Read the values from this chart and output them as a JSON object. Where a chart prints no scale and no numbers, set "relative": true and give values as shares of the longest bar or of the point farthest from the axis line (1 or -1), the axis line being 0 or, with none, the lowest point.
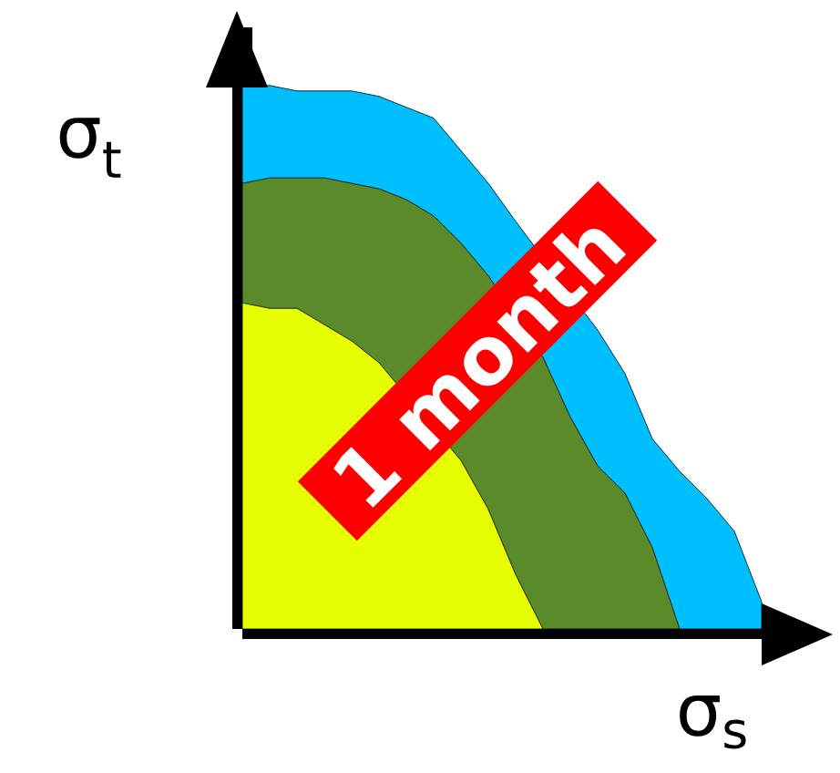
{
  "chart_data": {
    "type": "area",
    "relative": true,
    "xlabel": "σ$_{s}$",
    "ylabel": "σ$_{t}$",
    "categories": [
      null,
      null,
      null,
      null,
      null,
      null,
      null,
      null,
      null,
      null,
      null,
      null,
      null,
      null,
      null,
      null,
      null,
      null,
      null,
      null
    ],
    "series": [
      {
        "color": "#00bfff",
        "values": [
          1.0,
          1.0,
          0.99,
          0.99,
          0.99,
          0.98,
          0.96,
          0.94,
          0.88,
          0.82,
          0.75,
          null,
          null,
          0.55,
          0.47,
          0.35,
          0.29,
          0.24,
          0.18,
          0.05
        ]
      },
      {
        "color": "#5b8a2b",
        "values": [
          0.82,
          0.83,
          0.83,
          0.83,
          0.82,
          0.81,
          0.79,
          0.76,
          0.71,
          0.65,
          null,
          0.5,
          0.39,
          0.3,
          0.25,
          0.15,
          0,
          null,
          null,
          null
        ]
      },
      {
        "color": "#e5ff00",
        "values": [
          0.6,
          0.59,
          0.59,
          0.56,
          0.53,
          0.49,
          null,
          null,
          0.31,
          0.22,
          0.1,
          0,
          null,
          null,
          null,
          null,
          null,
          null,
          null,
          null
        ]
      }
    ],
    "annotations": [
      "1 month"
    ]
  }
}
